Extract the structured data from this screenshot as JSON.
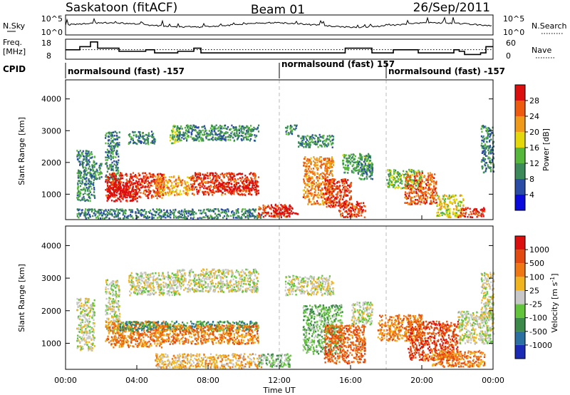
{
  "header": {
    "station": "Saskatoon (fitACF)",
    "beam": "Beam 01",
    "date": "26/Sep/2011"
  },
  "noise_panel": {
    "left_label": "N.Sky",
    "right_label": "N.Search",
    "left_ticks": [
      "10^5",
      "10^0"
    ],
    "right_ticks": [
      "10^5",
      "10^0"
    ]
  },
  "freq_panel": {
    "left_label_line1": "Freq.",
    "left_label_line2": "[MHz]",
    "right_label": "Nave",
    "left_ticks": [
      "18",
      "8"
    ],
    "right_ticks": [
      "60",
      "0"
    ],
    "freq_steps": [
      [
        0,
        14
      ],
      [
        0.8,
        16
      ],
      [
        1.4,
        19
      ],
      [
        1.8,
        15
      ],
      [
        2.3,
        15
      ],
      [
        3.0,
        13
      ],
      [
        4.5,
        14
      ],
      [
        5.0,
        12
      ],
      [
        6.3,
        13
      ],
      [
        7.2,
        15
      ],
      [
        7.6,
        12
      ],
      [
        15.7,
        15
      ],
      [
        17.2,
        12
      ],
      [
        18.4,
        14
      ],
      [
        19.8,
        12
      ],
      [
        21.8,
        14
      ],
      [
        22.1,
        13
      ],
      [
        22.4,
        11
      ],
      [
        23.3,
        12
      ],
      [
        23.6,
        16
      ],
      [
        24,
        16
      ]
    ],
    "nave_level": 32
  },
  "cpid": {
    "label": "CPID",
    "modes": [
      {
        "start_hour": 0,
        "text": "normalsound (fast) -157"
      },
      {
        "start_hour": 12,
        "text": "normalsound (fast) 157"
      },
      {
        "start_hour": 18,
        "text": "normalsound (fast) -157"
      }
    ]
  },
  "chart_data": [
    {
      "type": "heatmap",
      "parameter": "power",
      "ylabel": "Slant Range [km]",
      "ylim": [
        200,
        4600
      ],
      "yticks": [
        1000,
        2000,
        3000,
        4000
      ],
      "xlim_hours": [
        0,
        24
      ],
      "colorbar": {
        "label": "Power [dB]",
        "levels": [
          "4",
          "8",
          "12",
          "16",
          "20",
          "24",
          "28"
        ],
        "colors": [
          "#0a0adc",
          "#2a4ca6",
          "#3c8a5a",
          "#55b83c",
          "#e4d80a",
          "#f09a1a",
          "#ee5a10",
          "#dc0f0f"
        ]
      },
      "scatter_regions": [
        {
          "t0": 0.6,
          "t1": 1.6,
          "r0": 800,
          "r1": 2400,
          "level": 2
        },
        {
          "t0": 1.5,
          "t1": 2.0,
          "r0": 1500,
          "r1": 2000,
          "level": 2
        },
        {
          "t0": 2.2,
          "t1": 3.0,
          "r0": 1400,
          "r1": 3000,
          "level": 2
        },
        {
          "t0": 2.2,
          "t1": 5.5,
          "r0": 900,
          "r1": 1700,
          "level": 6.5
        },
        {
          "t0": 2.3,
          "t1": 4.0,
          "r0": 800,
          "r1": 1400,
          "level": 7.5
        },
        {
          "t0": 3.5,
          "t1": 5.0,
          "r0": 2600,
          "r1": 3000,
          "level": 2
        },
        {
          "t0": 5.0,
          "t1": 7.0,
          "r0": 1000,
          "r1": 1600,
          "level": 5
        },
        {
          "t0": 5.8,
          "t1": 6.4,
          "r0": 2600,
          "r1": 3200,
          "level": 3
        },
        {
          "t0": 6.2,
          "t1": 10.8,
          "r0": 2700,
          "r1": 3200,
          "level": 2
        },
        {
          "t0": 7.0,
          "t1": 10.8,
          "r0": 1000,
          "r1": 1700,
          "level": 6.5
        },
        {
          "t0": 8.5,
          "t1": 10.8,
          "r0": 1100,
          "r1": 1400,
          "level": 7.5
        },
        {
          "t0": 0.6,
          "t1": 11.0,
          "r0": 260,
          "r1": 560,
          "level": 1.8
        },
        {
          "t0": 10.8,
          "t1": 12.6,
          "r0": 300,
          "r1": 700,
          "level": 6.5
        },
        {
          "t0": 11.5,
          "t1": 13.0,
          "r0": 400,
          "r1": 600,
          "level": 7.5
        },
        {
          "t0": 12.3,
          "t1": 13.0,
          "r0": 2900,
          "r1": 3200,
          "level": 2
        },
        {
          "t0": 13.0,
          "t1": 15.0,
          "r0": 2500,
          "r1": 2900,
          "level": 2
        },
        {
          "t0": 13.3,
          "t1": 15.0,
          "r0": 700,
          "r1": 2200,
          "level": 5.5
        },
        {
          "t0": 14.5,
          "t1": 16.0,
          "r0": 600,
          "r1": 1500,
          "level": 6.5
        },
        {
          "t0": 15.3,
          "t1": 16.8,
          "r0": 300,
          "r1": 800,
          "level": 6.5
        },
        {
          "t0": 15.5,
          "t1": 17.2,
          "r0": 1700,
          "r1": 2300,
          "level": 2.5
        },
        {
          "t0": 16.3,
          "t1": 17.2,
          "r0": 1500,
          "r1": 2000,
          "level": 2
        },
        {
          "t0": 18.0,
          "t1": 20.0,
          "r0": 1200,
          "r1": 1800,
          "level": 3
        },
        {
          "t0": 19.0,
          "t1": 20.8,
          "r0": 700,
          "r1": 1700,
          "level": 6
        },
        {
          "t0": 20.8,
          "t1": 22.3,
          "r0": 300,
          "r1": 1000,
          "level": 4
        },
        {
          "t0": 22.0,
          "t1": 23.5,
          "r0": 300,
          "r1": 600,
          "level": 6.5
        },
        {
          "t0": 23.3,
          "t1": 24.0,
          "r0": 1700,
          "r1": 3200,
          "level": 2
        }
      ]
    },
    {
      "type": "heatmap",
      "parameter": "velocity",
      "ylabel": "Slant Range [km]",
      "ylim": [
        200,
        4600
      ],
      "yticks": [
        1000,
        2000,
        3000,
        4000
      ],
      "xlim_hours": [
        0,
        24
      ],
      "colorbar": {
        "label": "Velocity [m s^-1]",
        "levels": [
          "1000",
          "500",
          "100",
          "25",
          "-25",
          "-100",
          "-500",
          "-1000"
        ],
        "colors": [
          "#1a2ab4",
          "#2a70a0",
          "#3c8a4a",
          "#62c43a",
          "#c8c8c8",
          "#f0b41e",
          "#f07814",
          "#e24a10",
          "#dc0f0f"
        ]
      },
      "scatter_regions": [
        {
          "t0": 0.6,
          "t1": 1.6,
          "r0": 800,
          "r1": 2400,
          "level": 4
        },
        {
          "t0": 2.2,
          "t1": 3.0,
          "r0": 1400,
          "r1": 3000,
          "level": 4
        },
        {
          "t0": 2.2,
          "t1": 5.5,
          "r0": 900,
          "r1": 1700,
          "level": 6
        },
        {
          "t0": 3.0,
          "t1": 10.8,
          "r0": 1400,
          "r1": 1700,
          "level": 2
        },
        {
          "t0": 3.5,
          "t1": 6.4,
          "r0": 2500,
          "r1": 3200,
          "level": 4
        },
        {
          "t0": 6.2,
          "t1": 10.8,
          "r0": 2600,
          "r1": 3300,
          "level": 4
        },
        {
          "t0": 5.0,
          "t1": 10.8,
          "r0": 1000,
          "r1": 1600,
          "level": 6
        },
        {
          "t0": 5.0,
          "t1": 11.0,
          "r0": 260,
          "r1": 700,
          "level": 5
        },
        {
          "t0": 10.8,
          "t1": 12.6,
          "r0": 300,
          "r1": 700,
          "level": 3
        },
        {
          "t0": 12.3,
          "t1": 15.0,
          "r0": 2500,
          "r1": 3100,
          "level": 4
        },
        {
          "t0": 13.3,
          "t1": 15.5,
          "r0": 700,
          "r1": 2200,
          "level": 3
        },
        {
          "t0": 14.5,
          "t1": 16.8,
          "r0": 400,
          "r1": 1600,
          "level": 6.5
        },
        {
          "t0": 16.0,
          "t1": 17.2,
          "r0": 1600,
          "r1": 2300,
          "level": 4
        },
        {
          "t0": 17.5,
          "t1": 20.0,
          "r0": 1100,
          "r1": 1900,
          "level": 6
        },
        {
          "t0": 19.2,
          "t1": 22.0,
          "r0": 500,
          "r1": 1700,
          "level": 7
        },
        {
          "t0": 20.5,
          "t1": 23.5,
          "r0": 300,
          "r1": 800,
          "level": 6
        },
        {
          "t0": 22.0,
          "t1": 24.0,
          "r0": 1000,
          "r1": 2000,
          "level": 4
        },
        {
          "t0": 23.3,
          "t1": 24.0,
          "r0": 1700,
          "r1": 3200,
          "level": 4
        }
      ]
    }
  ],
  "time_axis": {
    "ticks": [
      "00:00",
      "04:00",
      "08:00",
      "12:00",
      "16:00",
      "20:00",
      "00:00"
    ],
    "tick_hours": [
      0,
      4,
      8,
      12,
      16,
      20,
      24
    ],
    "label": "Time UT",
    "divider_hours": [
      12,
      18
    ]
  }
}
